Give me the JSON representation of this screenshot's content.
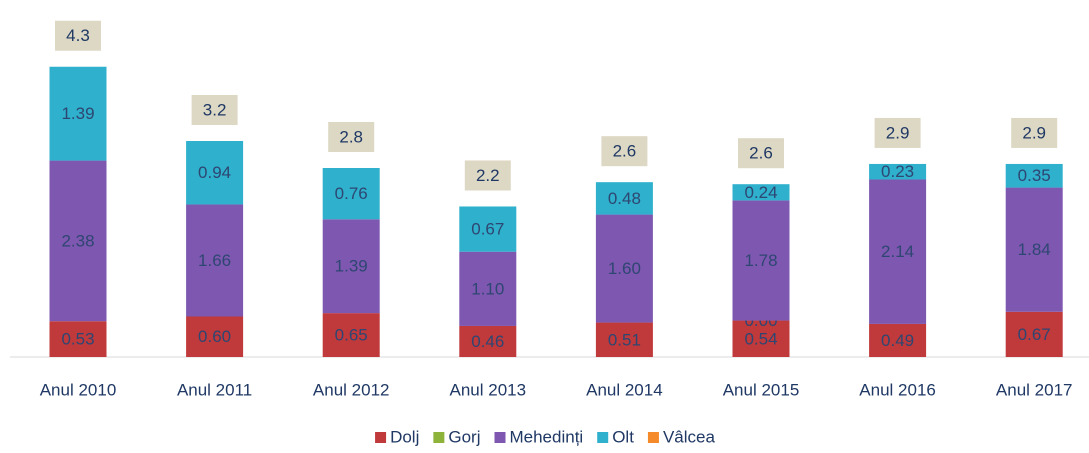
{
  "chart_data": {
    "type": "stacked_bar",
    "categories": [
      "Anul 2010",
      "Anul 2011",
      "Anul 2012",
      "Anul 2013",
      "Anul 2014",
      "Anul 2015",
      "Anul 2016",
      "Anul 2017"
    ],
    "series": [
      {
        "name": "Dolj",
        "color": "#c0393b",
        "values": [
          0.53,
          0.6,
          0.65,
          0.46,
          0.51,
          0.54,
          0.49,
          0.67
        ],
        "value_labels": [
          "0.53",
          "0.60",
          "0.65",
          "0.46",
          "0.51",
          "0.54",
          "0.49",
          "0.67"
        ]
      },
      {
        "name": "Gorj",
        "color": "#8db33b",
        "values": [
          null,
          null,
          null,
          null,
          null,
          0,
          null,
          null
        ],
        "value_labels": [
          null,
          null,
          null,
          null,
          null,
          "0.00",
          null,
          null
        ]
      },
      {
        "name": "Mehedinți",
        "color": "#7e57b0",
        "values": [
          2.38,
          1.66,
          1.39,
          1.1,
          1.6,
          1.78,
          2.14,
          1.84
        ],
        "value_labels": [
          "2.38",
          "1.66",
          "1.39",
          "1.10",
          "1.60",
          "1.78",
          "2.14",
          "1.84"
        ]
      },
      {
        "name": "Olt",
        "color": "#2fb0cc",
        "values": [
          1.39,
          0.94,
          0.76,
          0.67,
          0.48,
          0.24,
          0.23,
          0.35
        ],
        "value_labels": [
          "1.39",
          "0.94",
          "0.76",
          "0.67",
          "0.48",
          "0.24",
          "0.23",
          "0.35"
        ]
      },
      {
        "name": "Vâlcea",
        "color": "#f58a2a",
        "values": [
          null,
          null,
          null,
          null,
          null,
          null,
          null,
          null
        ]
      }
    ],
    "totals": [
      4.3,
      3.2,
      2.8,
      2.2,
      2.6,
      2.6,
      2.9,
      2.9
    ],
    "legend": "bottom"
  }
}
